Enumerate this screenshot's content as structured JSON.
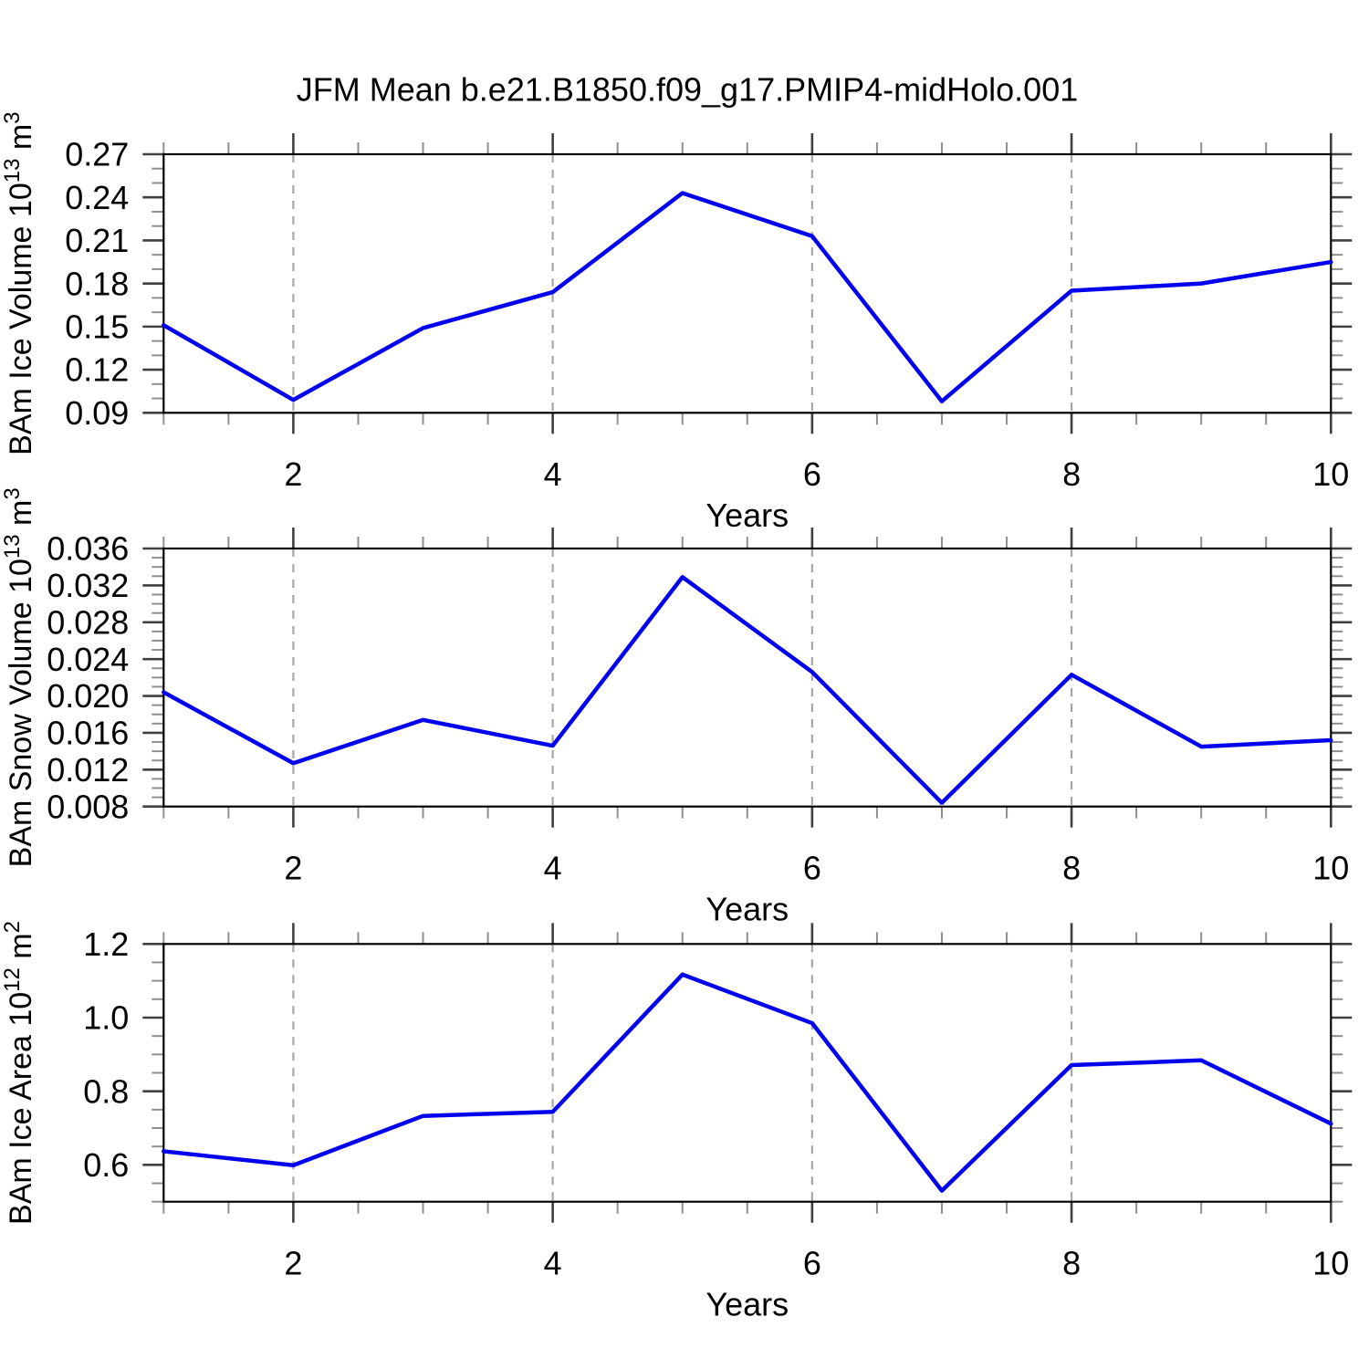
{
  "page": {
    "title": "JFM Mean b.e21.B1850.f09_g17.PMIP4-midHolo.001",
    "background": "#ffffff"
  },
  "colors": {
    "line": "#0000ee",
    "frame": "#000000",
    "major_tick": "#404040",
    "minor_tick": "#8f8f8f",
    "gridline": "#a6a6a6",
    "text": "#000000"
  },
  "x_axis": {
    "label": "Years",
    "range": [
      1,
      10
    ],
    "major_ticks": [
      2,
      4,
      6,
      8,
      10
    ],
    "major_tick_labels": [
      "2",
      "4",
      "6",
      "8",
      "10"
    ],
    "minor_step": 0.5,
    "gridlines_at": [
      2,
      4,
      6,
      8
    ]
  },
  "chart_data": [
    {
      "type": "line",
      "name": "ice-volume",
      "ylabel_text": "BAm Ice Volume 10^13 m^3",
      "ylabel_parts": {
        "base1": "BAm Ice Volume 10",
        "sup1": "13",
        "base2": " m",
        "sup2": "3"
      },
      "xlabel": "Years",
      "x": [
        1,
        2,
        3,
        4,
        5,
        6,
        7,
        8,
        9,
        10
      ],
      "values": [
        0.151,
        0.099,
        0.149,
        0.174,
        0.243,
        0.213,
        0.098,
        0.175,
        0.18,
        0.195
      ],
      "ylim": [
        0.09,
        0.27
      ],
      "yticks": [
        0.09,
        0.12,
        0.15,
        0.18,
        0.21,
        0.24,
        0.27
      ],
      "ytick_labels": [
        "0.09",
        "0.12",
        "0.15",
        "0.18",
        "0.21",
        "0.24",
        "0.27"
      ],
      "minor_step": 0.01,
      "grid": "vertical-dashed",
      "legend": "none"
    },
    {
      "type": "line",
      "name": "snow-volume",
      "ylabel_text": "BAm Snow Volume 10^13 m^3",
      "ylabel_parts": {
        "base1": "BAm Snow Volume 10",
        "sup1": "13",
        "base2": " m",
        "sup2": "3"
      },
      "xlabel": "Years",
      "x": [
        1,
        2,
        3,
        4,
        5,
        6,
        7,
        8,
        9,
        10
      ],
      "values": [
        0.0204,
        0.0127,
        0.0174,
        0.0146,
        0.0329,
        0.0226,
        0.0084,
        0.0223,
        0.0145,
        0.0152
      ],
      "ylim": [
        0.008,
        0.036
      ],
      "yticks": [
        0.008,
        0.012,
        0.016,
        0.02,
        0.024,
        0.028,
        0.032,
        0.036
      ],
      "ytick_labels": [
        "0.008",
        "0.012",
        "0.016",
        "0.020",
        "0.024",
        "0.028",
        "0.032",
        "0.036"
      ],
      "minor_step": 0.001,
      "grid": "vertical-dashed",
      "legend": "none"
    },
    {
      "type": "line",
      "name": "ice-area",
      "ylabel_text": "BAm Ice Area 10^12 m^2",
      "ylabel_parts": {
        "base1": "BAm Ice Area 10",
        "sup1": "12",
        "base2": " m",
        "sup2": "2"
      },
      "xlabel": "Years",
      "x": [
        1,
        2,
        3,
        4,
        5,
        6,
        7,
        8,
        9,
        10
      ],
      "values": [
        0.637,
        0.599,
        0.733,
        0.744,
        1.117,
        0.985,
        0.53,
        0.871,
        0.884,
        0.712
      ],
      "ylim": [
        0.5,
        1.2
      ],
      "yticks": [
        0.6,
        0.8,
        1.0,
        1.2
      ],
      "ytick_labels": [
        "0.6",
        "0.8",
        "1.0",
        "1.2"
      ],
      "minor_step": 0.05,
      "grid": "vertical-dashed",
      "legend": "none"
    }
  ]
}
